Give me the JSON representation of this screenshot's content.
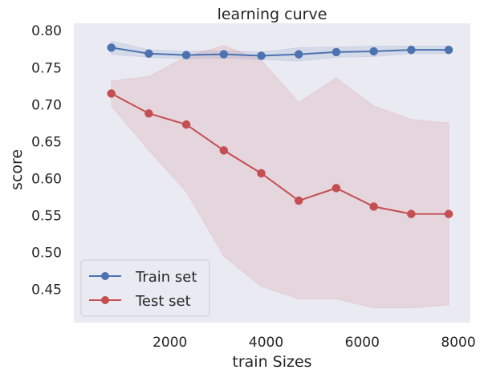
{
  "chart_data": {
    "type": "line",
    "title": "learning curve",
    "xlabel": "train Sizes",
    "ylabel": "score",
    "xlim": [
      0,
      8250
    ],
    "ylim": [
      0.405,
      0.81
    ],
    "xticks": [
      2000,
      4000,
      6000,
      8000
    ],
    "yticks": [
      0.45,
      0.5,
      0.55,
      0.6,
      0.65,
      0.7,
      0.75,
      0.8
    ],
    "grid": false,
    "background": "#eaeaf2",
    "legend_position": "lower-left",
    "x": [
      780,
      1560,
      2340,
      3120,
      3900,
      4680,
      5460,
      6240,
      7020,
      7800
    ],
    "series": [
      {
        "name": "Train set",
        "color": "#4c72b0",
        "marker": "circle",
        "values": [
          0.777,
          0.769,
          0.767,
          0.768,
          0.766,
          0.768,
          0.771,
          0.772,
          0.774,
          0.774
        ],
        "upper": [
          0.786,
          0.774,
          0.772,
          0.773,
          0.771,
          0.777,
          0.778,
          0.779,
          0.779,
          0.779
        ],
        "lower": [
          0.768,
          0.764,
          0.762,
          0.763,
          0.761,
          0.759,
          0.764,
          0.765,
          0.769,
          0.769
        ]
      },
      {
        "name": "Test set",
        "color": "#c44e52",
        "marker": "circle",
        "values": [
          0.715,
          0.688,
          0.673,
          0.638,
          0.607,
          0.57,
          0.587,
          0.562,
          0.552,
          0.552
        ],
        "upper": [
          0.732,
          0.738,
          0.765,
          0.78,
          0.76,
          0.703,
          0.736,
          0.698,
          0.68,
          0.675
        ],
        "lower": [
          0.698,
          0.638,
          0.582,
          0.495,
          0.454,
          0.437,
          0.437,
          0.425,
          0.425,
          0.429
        ]
      }
    ]
  }
}
